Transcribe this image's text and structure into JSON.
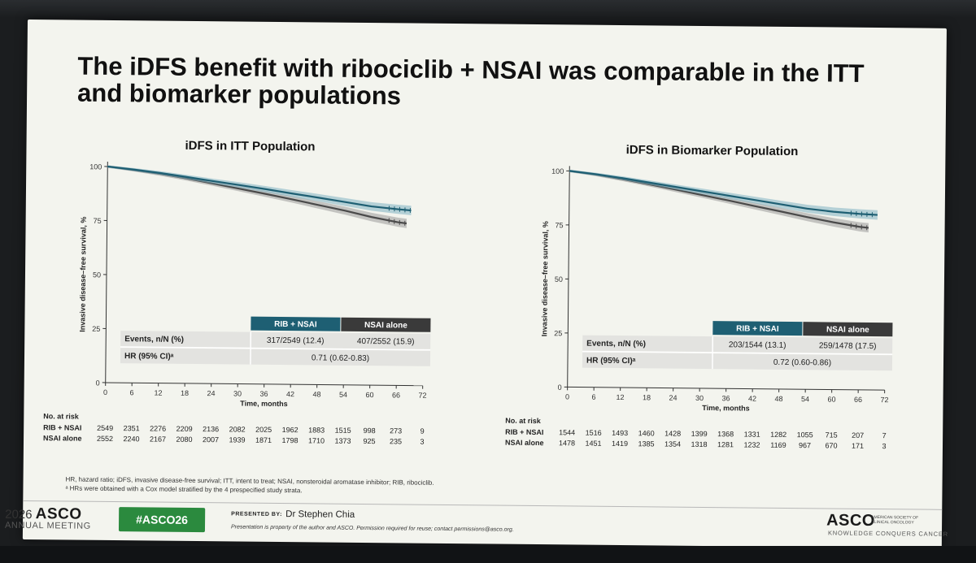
{
  "slide": {
    "title": "The iDFS benefit with ribociclib + NSAI was comparable in the ITT and biomarker populations",
    "footnotes": [
      "HR, hazard ratio; iDFS, invasive disease-free survival; ITT, intent to treat; NSAI, nonsteroidal aromatase inhibitor; RIB, ribociclib.",
      "ᵃ HRs were obtained with a Cox model stratified by the 4 prespecified study strata."
    ],
    "footer": {
      "year": "2026",
      "brand": "ASCO",
      "meeting": "ANNUAL MEETING",
      "hashtag": "#ASCO26",
      "presented_by_label": "PRESENTED BY:",
      "presenter": "Dr Stephen Chia",
      "property_note": "Presentation is property of the author and ASCO. Permission required for reuse; contact permissions@asco.org.",
      "society_brand": "ASCO",
      "society_name": "AMERICAN SOCIETY OF CLINICAL ONCOLOGY",
      "tagline": "KNOWLEDGE CONQUERS CANCER"
    }
  },
  "colors": {
    "rib_nsai": "#1e5f73",
    "nsai_alone": "#4a4a4a",
    "rib_ci": "#7fb3c2",
    "nsai_ci": "#9a9a9a",
    "header_dark": "#3a3a3a",
    "cell_fill": "#e3e3e0"
  },
  "chart_data": [
    {
      "type": "line",
      "title": "iDFS in ITT Population",
      "xlabel": "Time, months",
      "ylabel": "Invasive disease–free survival, %",
      "xlim": [
        0,
        72
      ],
      "ylim": [
        0,
        100
      ],
      "xticks": [
        0,
        6,
        12,
        18,
        24,
        30,
        36,
        42,
        48,
        54,
        60,
        66,
        72
      ],
      "yticks": [
        0,
        25,
        50,
        75,
        100
      ],
      "series": [
        {
          "name": "RIB + NSAI",
          "x": [
            0,
            6,
            12,
            18,
            24,
            30,
            36,
            42,
            48,
            54,
            60,
            66,
            69
          ],
          "y": [
            100,
            98.7,
            97.2,
            95.5,
            93.7,
            92.0,
            90.2,
            88.3,
            86.5,
            84.6,
            82.7,
            81.5,
            81.0
          ]
        },
        {
          "name": "NSAI alone",
          "x": [
            0,
            6,
            12,
            18,
            24,
            30,
            36,
            42,
            48,
            54,
            60,
            66,
            68
          ],
          "y": [
            100,
            98.5,
            96.8,
            94.8,
            92.6,
            90.3,
            88.0,
            85.6,
            83.1,
            80.6,
            77.8,
            75.5,
            75.0
          ]
        }
      ],
      "table": {
        "col_headers": [
          "RIB + NSAI",
          "NSAI alone"
        ],
        "events_label": "Events, n/N (%)",
        "events": [
          "317/2549 (12.4)",
          "407/2552 (15.9)"
        ],
        "hr_label": "HR (95% CI)ᵃ",
        "hr": "0.71 (0.62-0.83)"
      },
      "at_risk": {
        "label": "No. at risk",
        "rows": [
          {
            "name": "RIB + NSAI",
            "values": [
              "2549",
              "2351",
              "2276",
              "2209",
              "2136",
              "2082",
              "2025",
              "1962",
              "1883",
              "1515",
              "998",
              "273",
              "9"
            ]
          },
          {
            "name": "NSAI alone",
            "values": [
              "2552",
              "2240",
              "2167",
              "2080",
              "2007",
              "1939",
              "1871",
              "1798",
              "1710",
              "1373",
              "925",
              "235",
              "3"
            ]
          }
        ]
      }
    },
    {
      "type": "line",
      "title": "iDFS in Biomarker Population",
      "xlabel": "Time, months",
      "ylabel": "Invasive disease–free survival, %",
      "xlim": [
        0,
        72
      ],
      "ylim": [
        0,
        100
      ],
      "xticks": [
        0,
        6,
        12,
        18,
        24,
        30,
        36,
        42,
        48,
        54,
        60,
        66,
        72
      ],
      "yticks": [
        0,
        25,
        50,
        75,
        100
      ],
      "series": [
        {
          "name": "RIB + NSAI",
          "x": [
            0,
            6,
            12,
            18,
            24,
            30,
            36,
            42,
            48,
            54,
            60,
            66,
            70
          ],
          "y": [
            100,
            98.6,
            96.9,
            95.0,
            93.1,
            91.2,
            89.3,
            87.4,
            85.5,
            83.6,
            82.3,
            81.4,
            81.0
          ]
        },
        {
          "name": "NSAI alone",
          "x": [
            0,
            6,
            12,
            18,
            24,
            30,
            36,
            42,
            48,
            54,
            60,
            66,
            68
          ],
          "y": [
            100,
            98.4,
            96.4,
            94.2,
            91.9,
            89.5,
            87.1,
            84.6,
            82.2,
            79.7,
            77.4,
            75.4,
            75.0
          ]
        }
      ],
      "table": {
        "col_headers": [
          "RIB + NSAI",
          "NSAI alone"
        ],
        "events_label": "Events, n/N (%)",
        "events": [
          "203/1544 (13.1)",
          "259/1478 (17.5)"
        ],
        "hr_label": "HR (95% CI)ᵃ",
        "hr": "0.72 (0.60-0.86)"
      },
      "at_risk": {
        "label": "No. at risk",
        "rows": [
          {
            "name": "RIB + NSAI",
            "values": [
              "1544",
              "1516",
              "1493",
              "1460",
              "1428",
              "1399",
              "1368",
              "1331",
              "1282",
              "1055",
              "715",
              "207",
              "7"
            ]
          },
          {
            "name": "NSAI alone",
            "values": [
              "1478",
              "1451",
              "1419",
              "1385",
              "1354",
              "1318",
              "1281",
              "1232",
              "1169",
              "967",
              "670",
              "171",
              "3"
            ]
          }
        ]
      }
    }
  ]
}
